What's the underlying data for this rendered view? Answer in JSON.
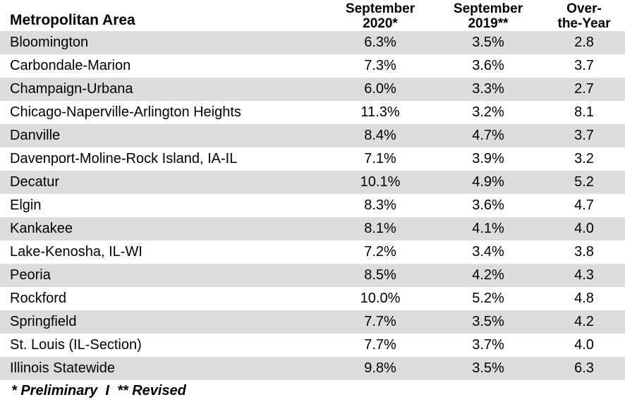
{
  "header": {
    "area": "Metropolitan Area",
    "col1": "September\n2020*",
    "col2": "September\n2019**",
    "col3": "Over-\nthe-Year"
  },
  "rows": [
    {
      "area": "Bloomington",
      "sep2020": "6.3%",
      "sep2019": "3.5%",
      "change": "2.8"
    },
    {
      "area": "Carbondale-Marion",
      "sep2020": "7.3%",
      "sep2019": "3.6%",
      "change": "3.7"
    },
    {
      "area": "Champaign-Urbana",
      "sep2020": "6.0%",
      "sep2019": "3.3%",
      "change": "2.7"
    },
    {
      "area": "Chicago-Naperville-Arlington Heights",
      "sep2020": "11.3%",
      "sep2019": "3.2%",
      "change": "8.1"
    },
    {
      "area": "Danville",
      "sep2020": "8.4%",
      "sep2019": "4.7%",
      "change": "3.7"
    },
    {
      "area": "Davenport-Moline-Rock Island, IA-IL",
      "sep2020": "7.1%",
      "sep2019": "3.9%",
      "change": "3.2"
    },
    {
      "area": "Decatur",
      "sep2020": "10.1%",
      "sep2019": "4.9%",
      "change": "5.2"
    },
    {
      "area": "Elgin",
      "sep2020": "8.3%",
      "sep2019": "3.6%",
      "change": "4.7"
    },
    {
      "area": "Kankakee",
      "sep2020": "8.1%",
      "sep2019": "4.1%",
      "change": "4.0"
    },
    {
      "area": "Lake-Kenosha, IL-WI",
      "sep2020": "7.2%",
      "sep2019": "3.4%",
      "change": "3.8"
    },
    {
      "area": "Peoria",
      "sep2020": "8.5%",
      "sep2019": "4.2%",
      "change": "4.3"
    },
    {
      "area": "Rockford",
      "sep2020": "10.0%",
      "sep2019": "5.2%",
      "change": "4.8"
    },
    {
      "area": "Springfield",
      "sep2020": "7.7%",
      "sep2019": "3.5%",
      "change": "4.2"
    },
    {
      "area": "St. Louis (IL-Section)",
      "sep2020": "7.7%",
      "sep2019": "3.7%",
      "change": "4.0"
    },
    {
      "area": "Illinois Statewide",
      "sep2020": "9.8%",
      "sep2019": "3.5%",
      "change": "6.3"
    }
  ],
  "footnote": "* Preliminary  I  ** Revised",
  "colors": {
    "shade": "#dcdcdc",
    "background": "#ffffff",
    "text": "#000000"
  }
}
